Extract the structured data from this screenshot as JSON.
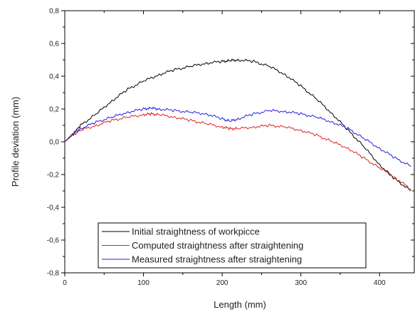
{
  "chart_data": {
    "type": "line",
    "xlabel": "Length (mm)",
    "ylabel": "Profile deviation (mm)",
    "xlim": [
      0,
      445
    ],
    "ylim": [
      -0.8,
      0.8
    ],
    "xticks": [
      0,
      100,
      200,
      300,
      400
    ],
    "yticks": [
      0.8,
      0.6,
      0.4,
      0.2,
      0.0,
      -0.2,
      -0.4,
      -0.6,
      -0.8
    ],
    "xtick_labels": [
      "0",
      "100",
      "200",
      "300",
      "400"
    ],
    "ytick_labels": [
      "0,8",
      "0,6",
      "0,4",
      "0,2",
      "0,0",
      "-0,2",
      "-0,4",
      "-0,6",
      "-0,8"
    ],
    "grid": false,
    "legend_position": "bottom-center",
    "series": [
      {
        "name": "Initial straightness of workpicce",
        "color": "#000000",
        "x": [
          0,
          10,
          20,
          40,
          60,
          80,
          100,
          120,
          140,
          160,
          180,
          200,
          210,
          220,
          240,
          260,
          280,
          300,
          320,
          340,
          360,
          380,
          400,
          420,
          440
        ],
        "y": [
          0.0,
          0.04,
          0.1,
          0.17,
          0.25,
          0.32,
          0.37,
          0.41,
          0.44,
          0.46,
          0.48,
          0.49,
          0.495,
          0.5,
          0.49,
          0.46,
          0.41,
          0.34,
          0.26,
          0.17,
          0.07,
          -0.03,
          -0.14,
          -0.23,
          -0.3
        ]
      },
      {
        "name": "Computed straightness after straightening",
        "color": "#e02020",
        "x": [
          0,
          10,
          20,
          40,
          60,
          80,
          100,
          110,
          120,
          140,
          160,
          180,
          200,
          210,
          220,
          240,
          260,
          280,
          300,
          320,
          340,
          360,
          380,
          400,
          420,
          440
        ],
        "y": [
          0.0,
          0.04,
          0.07,
          0.1,
          0.13,
          0.15,
          0.165,
          0.17,
          0.165,
          0.15,
          0.13,
          0.11,
          0.09,
          0.08,
          0.08,
          0.09,
          0.1,
          0.09,
          0.07,
          0.04,
          0.0,
          -0.04,
          -0.1,
          -0.16,
          -0.22,
          -0.29
        ]
      },
      {
        "name": "Measured straightness after straightening",
        "color": "#2020e0",
        "x": [
          0,
          10,
          20,
          40,
          60,
          80,
          100,
          110,
          120,
          140,
          160,
          180,
          200,
          210,
          220,
          240,
          260,
          280,
          300,
          320,
          340,
          360,
          380,
          400,
          420,
          440
        ],
        "y": [
          0.0,
          0.05,
          0.08,
          0.12,
          0.15,
          0.18,
          0.2,
          0.205,
          0.2,
          0.19,
          0.18,
          0.17,
          0.14,
          0.125,
          0.14,
          0.17,
          0.19,
          0.185,
          0.17,
          0.15,
          0.12,
          0.08,
          0.02,
          -0.04,
          -0.1,
          -0.15
        ]
      }
    ]
  }
}
